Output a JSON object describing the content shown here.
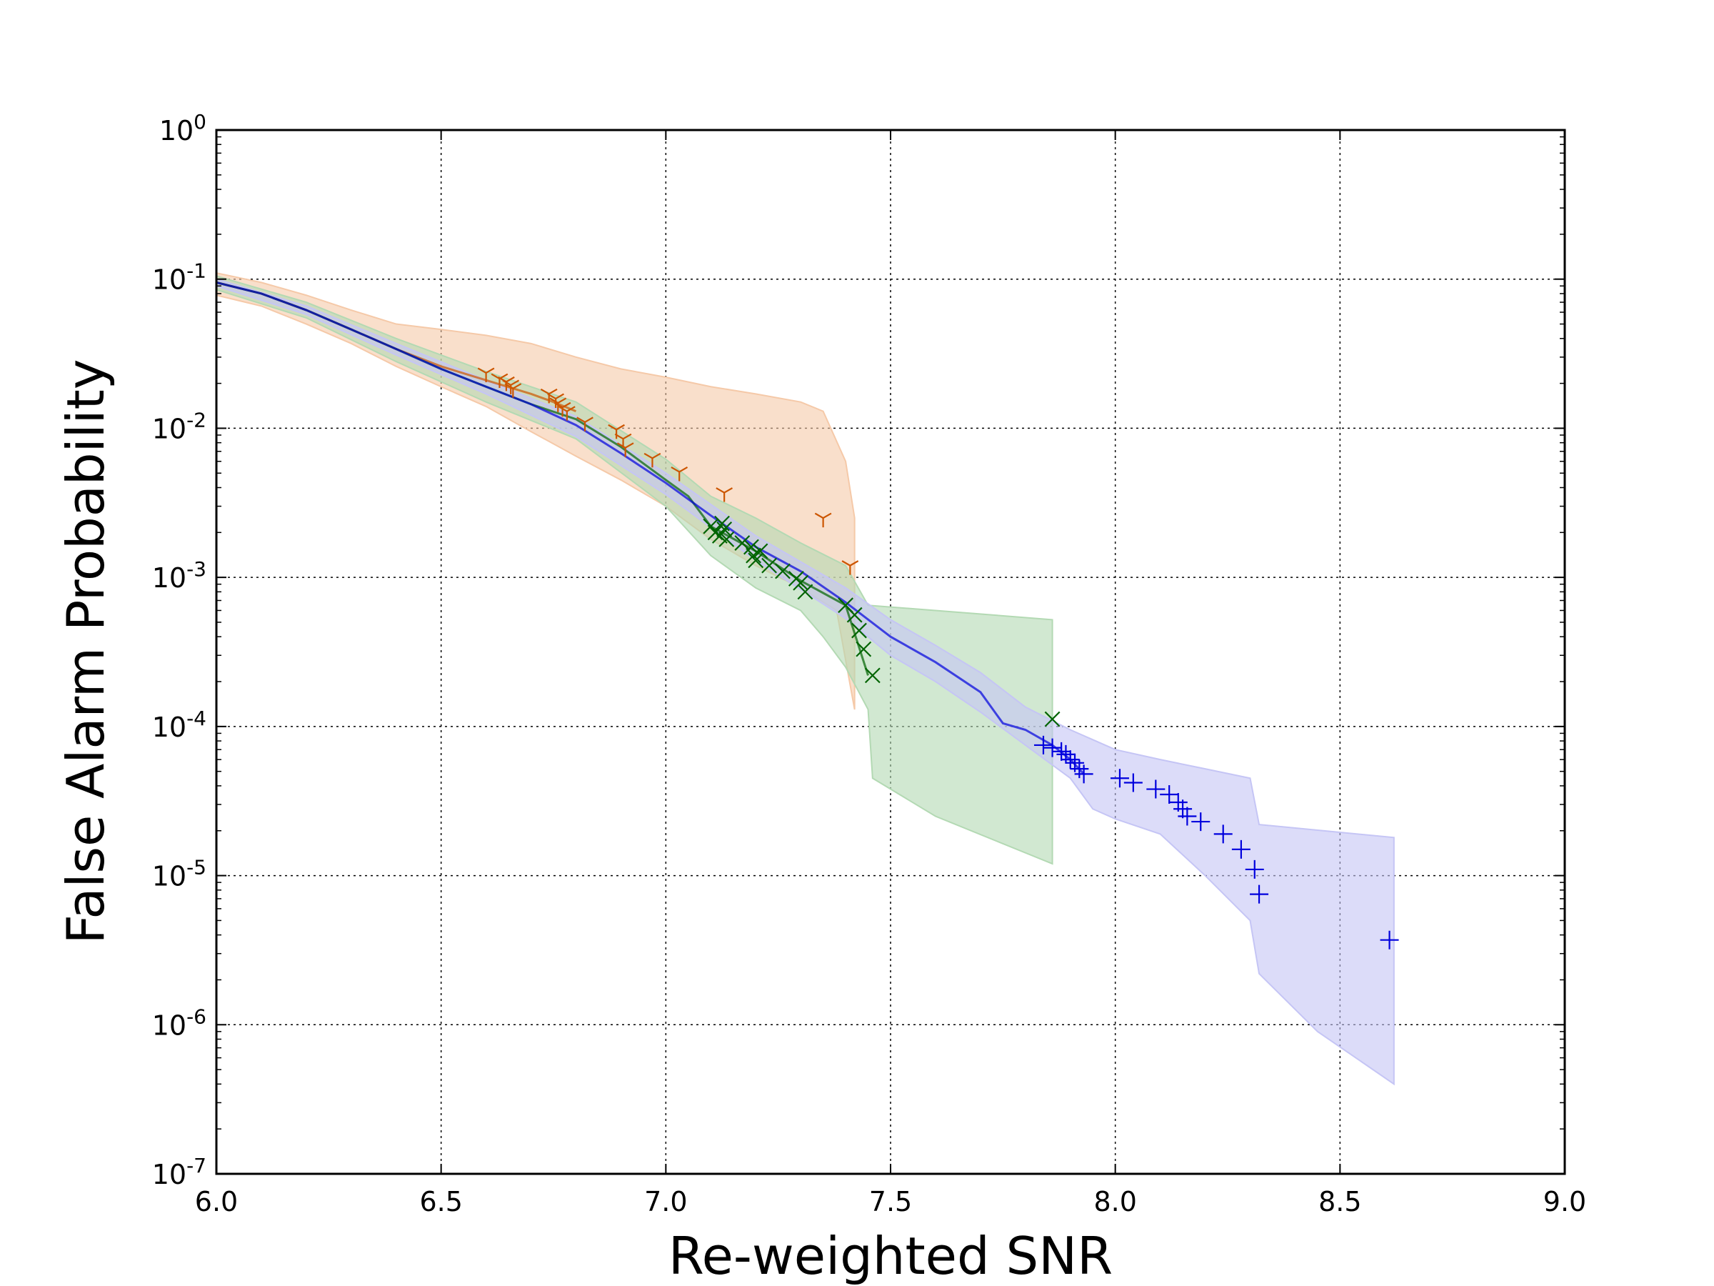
{
  "chart_data": {
    "type": "scatter",
    "title": "",
    "xlabel": "Re-weighted SNR",
    "ylabel": "False Alarm Probability",
    "xlim": [
      6.0,
      9.0
    ],
    "ylim": [
      1e-07,
      1
    ],
    "yscale": "log",
    "grid": true,
    "x_ticks": [
      "6.0",
      "6.5",
      "7.0",
      "7.5",
      "8.0",
      "8.5",
      "9.0"
    ],
    "x_tick_values": [
      6.0,
      6.5,
      7.0,
      7.5,
      8.0,
      8.5,
      9.0
    ],
    "y_ticks": [
      {
        "value": 1,
        "base": "10",
        "exp": "0"
      },
      {
        "value": 0.1,
        "base": "10",
        "exp": "-1"
      },
      {
        "value": 0.01,
        "base": "10",
        "exp": "-2"
      },
      {
        "value": 0.001,
        "base": "10",
        "exp": "-3"
      },
      {
        "value": 0.0001,
        "base": "10",
        "exp": "-4"
      },
      {
        "value": 1e-05,
        "base": "10",
        "exp": "-5"
      },
      {
        "value": 1e-06,
        "base": "10",
        "exp": "-6"
      },
      {
        "value": 1e-07,
        "base": "10",
        "exp": "-7"
      }
    ],
    "series": [
      {
        "name": "orange",
        "color": "#cc5500",
        "fill": "#f5c9a8",
        "marker": "tri_down",
        "line": [
          [
            6.0,
            0.095
          ],
          [
            6.1,
            0.08
          ],
          [
            6.2,
            0.062
          ],
          [
            6.3,
            0.046
          ],
          [
            6.4,
            0.034
          ],
          [
            6.5,
            0.026
          ],
          [
            6.6,
            0.021
          ],
          [
            6.7,
            0.017
          ],
          [
            6.75,
            0.015
          ],
          [
            6.8,
            0.013
          ]
        ],
        "band_upper": [
          [
            6.0,
            0.11
          ],
          [
            6.1,
            0.095
          ],
          [
            6.2,
            0.078
          ],
          [
            6.3,
            0.062
          ],
          [
            6.4,
            0.05
          ],
          [
            6.5,
            0.046
          ],
          [
            6.6,
            0.042
          ],
          [
            6.7,
            0.037
          ],
          [
            6.8,
            0.03
          ],
          [
            6.9,
            0.025
          ],
          [
            7.0,
            0.022
          ],
          [
            7.1,
            0.019
          ],
          [
            7.2,
            0.017
          ],
          [
            7.3,
            0.015
          ],
          [
            7.35,
            0.013
          ],
          [
            7.4,
            0.006
          ],
          [
            7.42,
            0.0025
          ]
        ],
        "band_lower": [
          [
            6.0,
            0.078
          ],
          [
            6.1,
            0.066
          ],
          [
            6.2,
            0.05
          ],
          [
            6.3,
            0.037
          ],
          [
            6.4,
            0.026
          ],
          [
            6.5,
            0.019
          ],
          [
            6.6,
            0.014
          ],
          [
            6.7,
            0.0095
          ],
          [
            6.8,
            0.0065
          ],
          [
            6.9,
            0.0045
          ],
          [
            7.0,
            0.003
          ],
          [
            7.1,
            0.0018
          ],
          [
            7.2,
            0.0012
          ],
          [
            7.3,
            0.00085
          ],
          [
            7.38,
            0.0006
          ],
          [
            7.42,
            0.00013
          ]
        ],
        "points": [
          [
            6.6,
            0.0235
          ],
          [
            6.63,
            0.0215
          ],
          [
            6.645,
            0.0205
          ],
          [
            6.655,
            0.0195
          ],
          [
            6.66,
            0.0185
          ],
          [
            6.74,
            0.017
          ],
          [
            6.755,
            0.0158
          ],
          [
            6.76,
            0.0148
          ],
          [
            6.77,
            0.0138
          ],
          [
            6.78,
            0.013
          ],
          [
            6.82,
            0.011
          ],
          [
            6.89,
            0.0098
          ],
          [
            6.905,
            0.0085
          ],
          [
            6.91,
            0.0074
          ],
          [
            6.97,
            0.0063
          ],
          [
            7.03,
            0.0051
          ],
          [
            7.13,
            0.0037
          ],
          [
            7.35,
            0.0025
          ],
          [
            7.41,
            0.0012
          ]
        ]
      },
      {
        "name": "green",
        "color": "#006400",
        "fill": "#b3d9b3",
        "marker": "x",
        "line": [
          [
            6.0,
            0.095
          ],
          [
            6.1,
            0.08
          ],
          [
            6.2,
            0.062
          ],
          [
            6.3,
            0.046
          ],
          [
            6.4,
            0.034
          ],
          [
            6.5,
            0.025
          ],
          [
            6.6,
            0.019
          ],
          [
            6.7,
            0.0145
          ],
          [
            6.8,
            0.0115
          ],
          [
            6.9,
            0.0075
          ],
          [
            7.0,
            0.0045
          ],
          [
            7.05,
            0.0035
          ],
          [
            7.1,
            0.0022
          ],
          [
            7.2,
            0.0015
          ],
          [
            7.3,
            0.00095
          ],
          [
            7.4,
            0.00065
          ],
          [
            7.45,
            0.00022
          ]
        ],
        "band_upper": [
          [
            6.0,
            0.105
          ],
          [
            6.2,
            0.07
          ],
          [
            6.4,
            0.04
          ],
          [
            6.6,
            0.024
          ],
          [
            6.8,
            0.015
          ],
          [
            7.0,
            0.0062
          ],
          [
            7.1,
            0.0035
          ],
          [
            7.2,
            0.0025
          ],
          [
            7.3,
            0.0017
          ],
          [
            7.4,
            0.0012
          ],
          [
            7.45,
            0.00065
          ],
          [
            7.6,
            0.0006
          ],
          [
            7.86,
            0.00052
          ]
        ],
        "band_lower": [
          [
            6.0,
            0.085
          ],
          [
            6.2,
            0.055
          ],
          [
            6.4,
            0.028
          ],
          [
            6.6,
            0.015
          ],
          [
            6.8,
            0.0085
          ],
          [
            7.0,
            0.003
          ],
          [
            7.1,
            0.0014
          ],
          [
            7.2,
            0.00085
          ],
          [
            7.3,
            0.0006
          ],
          [
            7.35,
            0.0004
          ],
          [
            7.4,
            0.00025
          ],
          [
            7.45,
            0.00013
          ],
          [
            7.46,
            4.5e-05
          ],
          [
            7.6,
            2.5e-05
          ],
          [
            7.86,
            1.2e-05
          ]
        ],
        "points": [
          [
            7.1,
            0.0022
          ],
          [
            7.11,
            0.002
          ],
          [
            7.12,
            0.0019
          ],
          [
            7.125,
            0.0023
          ],
          [
            7.13,
            0.0021
          ],
          [
            7.135,
            0.0018
          ],
          [
            7.17,
            0.0017
          ],
          [
            7.19,
            0.0016
          ],
          [
            7.195,
            0.0014
          ],
          [
            7.2,
            0.0013
          ],
          [
            7.21,
            0.0015
          ],
          [
            7.23,
            0.0012
          ],
          [
            7.26,
            0.0011
          ],
          [
            7.29,
            0.00098
          ],
          [
            7.3,
            0.00092
          ],
          [
            7.31,
            0.0008
          ],
          [
            7.4,
            0.00065
          ],
          [
            7.42,
            0.00056
          ],
          [
            7.43,
            0.00044
          ],
          [
            7.44,
            0.00033
          ],
          [
            7.46,
            0.00022
          ],
          [
            7.86,
            0.000112
          ]
        ]
      },
      {
        "name": "blue",
        "color": "#0000dd",
        "fill": "#c5c5f5",
        "marker": "plus",
        "line": [
          [
            6.0,
            0.095
          ],
          [
            6.1,
            0.08
          ],
          [
            6.2,
            0.062
          ],
          [
            6.3,
            0.046
          ],
          [
            6.4,
            0.034
          ],
          [
            6.5,
            0.025
          ],
          [
            6.6,
            0.019
          ],
          [
            6.7,
            0.0145
          ],
          [
            6.8,
            0.0105
          ],
          [
            6.9,
            0.0068
          ],
          [
            7.0,
            0.0043
          ],
          [
            7.1,
            0.0026
          ],
          [
            7.2,
            0.0016
          ],
          [
            7.3,
            0.0011
          ],
          [
            7.4,
            0.00068
          ],
          [
            7.5,
            0.0004
          ],
          [
            7.6,
            0.00027
          ],
          [
            7.7,
            0.00017
          ],
          [
            7.75,
            0.000105
          ],
          [
            7.8,
            9.5e-05
          ],
          [
            7.86,
            7.5e-05
          ],
          [
            7.9,
            6e-05
          ],
          [
            7.93,
            4.8e-05
          ]
        ],
        "band_upper": [
          [
            6.0,
            0.1
          ],
          [
            6.2,
            0.066
          ],
          [
            6.4,
            0.037
          ],
          [
            6.6,
            0.021
          ],
          [
            6.8,
            0.012
          ],
          [
            7.0,
            0.005
          ],
          [
            7.2,
            0.0019
          ],
          [
            7.4,
            0.00085
          ],
          [
            7.5,
            0.00052
          ],
          [
            7.6,
            0.00035
          ],
          [
            7.7,
            0.00023
          ],
          [
            7.8,
            0.000135
          ],
          [
            7.9,
            9.5e-05
          ],
          [
            8.0,
            7e-05
          ],
          [
            8.1,
            6e-05
          ],
          [
            8.2,
            5.2e-05
          ],
          [
            8.3,
            4.5e-05
          ],
          [
            8.32,
            2.2e-05
          ],
          [
            8.62,
            1.8e-05
          ]
        ],
        "band_lower": [
          [
            6.0,
            0.09
          ],
          [
            6.2,
            0.058
          ],
          [
            6.4,
            0.031
          ],
          [
            6.6,
            0.017
          ],
          [
            6.8,
            0.0088
          ],
          [
            7.0,
            0.0036
          ],
          [
            7.2,
            0.0013
          ],
          [
            7.4,
            0.00053
          ],
          [
            7.5,
            0.0003
          ],
          [
            7.6,
            0.0002
          ],
          [
            7.7,
            0.000125
          ],
          [
            7.8,
            7.5e-05
          ],
          [
            7.9,
            4.5e-05
          ],
          [
            7.95,
            2.8e-05
          ],
          [
            8.0,
            2.4e-05
          ],
          [
            8.1,
            1.9e-05
          ],
          [
            8.2,
            1e-05
          ],
          [
            8.3,
            5e-06
          ],
          [
            8.32,
            2.2e-06
          ],
          [
            8.45,
            9e-07
          ],
          [
            8.62,
            4e-07
          ]
        ],
        "points": [
          [
            7.84,
            7.5e-05
          ],
          [
            7.86,
            7.2e-05
          ],
          [
            7.88,
            6.8e-05
          ],
          [
            7.89,
            6.5e-05
          ],
          [
            7.9,
            6e-05
          ],
          [
            7.91,
            5.7e-05
          ],
          [
            7.92,
            5.2e-05
          ],
          [
            7.93,
            4.8e-05
          ],
          [
            8.01,
            4.5e-05
          ],
          [
            8.04,
            4.2e-05
          ],
          [
            8.09,
            3.8e-05
          ],
          [
            8.12,
            3.5e-05
          ],
          [
            8.14,
            3.1e-05
          ],
          [
            8.15,
            2.8e-05
          ],
          [
            8.16,
            2.5e-05
          ],
          [
            8.19,
            2.3e-05
          ],
          [
            8.24,
            1.9e-05
          ],
          [
            8.28,
            1.5e-05
          ],
          [
            8.31,
            1.1e-05
          ],
          [
            8.32,
            7.5e-06
          ],
          [
            8.61,
            3.7e-06
          ]
        ]
      }
    ]
  }
}
